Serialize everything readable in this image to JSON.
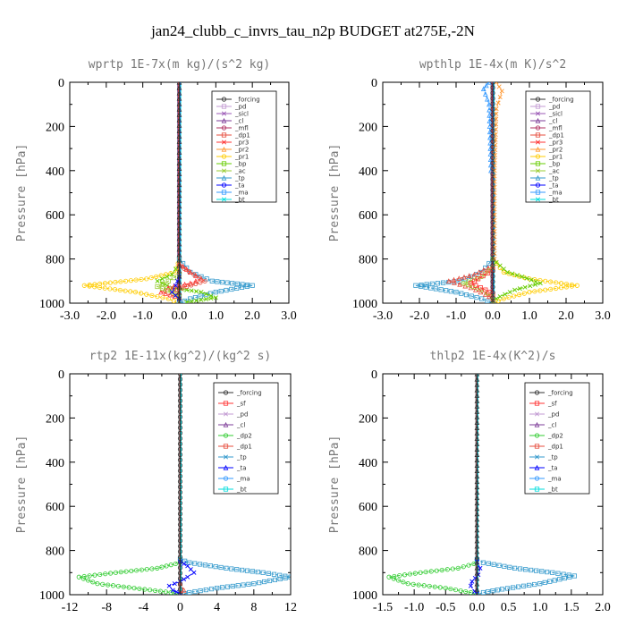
{
  "figure_title": "jan24_clubb_c_invrs_tau_n2p  BUDGET at275E,-2N",
  "colors": {
    "_forcing": "#333333",
    "_pd": "#c39bd3",
    "_sicl": "#9b59b6",
    "_cl": "#7d3c98",
    "_mfl": "#b03060",
    "_dp1": "#e74c3c",
    "_pr3": "#ff3333",
    "_pr2": "#ff9933",
    "_pr1": "#ffcc00",
    "_bp": "#66cc00",
    "_ac": "#99cc33",
    "_tp": "#3399cc",
    "_ta": "#0000ff",
    "_ma": "#3399ff",
    "_bt": "#00dddd",
    "_sf": "#ff3333",
    "_dp2": "#33cc33"
  },
  "chart_data": [
    {
      "type": "line",
      "title": "wprtp  1E-7x(m kg)/(s^2 kg)",
      "ylabel": "Pressure [hPa]",
      "xlim": [
        -3.0,
        3.0
      ],
      "ylim": [
        1000,
        0
      ],
      "xticks": [
        "-3.0",
        "-2.0",
        "-1.0",
        "0.0",
        "1.0",
        "2.0",
        "3.0"
      ],
      "yticks": [
        "0",
        "200",
        "400",
        "600",
        "800",
        "1000"
      ],
      "legend": [
        "_forcing",
        "_pd",
        "_sicl",
        "_cl",
        "_mfl",
        "_dp1",
        "_pr3",
        "_pr2",
        "_pr1",
        "_bp",
        "_ac",
        "_tp",
        "_ta",
        "_ma",
        "_bt"
      ],
      "series": [
        {
          "name": "_pr1",
          "points": [
            [
              0,
              800
            ],
            [
              -0.1,
              860
            ],
            [
              -0.9,
              890
            ],
            [
              -2.6,
              920
            ],
            [
              -1.2,
              950
            ],
            [
              -0.3,
              980
            ],
            [
              0,
              1000
            ]
          ]
        },
        {
          "name": "_tp",
          "points": [
            [
              0,
              800
            ],
            [
              0.3,
              860
            ],
            [
              0.9,
              900
            ],
            [
              2.0,
              920
            ],
            [
              1.0,
              950
            ],
            [
              0.3,
              980
            ],
            [
              0,
              1000
            ]
          ]
        },
        {
          "name": "_bp",
          "points": [
            [
              0,
              820
            ],
            [
              -0.2,
              870
            ],
            [
              -0.6,
              900
            ],
            [
              -0.2,
              930
            ],
            [
              0.6,
              950
            ],
            [
              1.0,
              975
            ],
            [
              0.2,
              995
            ]
          ]
        },
        {
          "name": "_pr3",
          "points": [
            [
              0,
              820
            ],
            [
              0.3,
              860
            ],
            [
              0.6,
              890
            ],
            [
              0.3,
              910
            ],
            [
              -0.3,
              930
            ],
            [
              -0.5,
              950
            ],
            [
              0,
              975
            ]
          ]
        },
        {
          "name": "_dp1",
          "points": [
            [
              0,
              830
            ],
            [
              0.4,
              870
            ],
            [
              0.7,
              900
            ],
            [
              0.2,
              925
            ],
            [
              -0.2,
              945
            ],
            [
              0,
              965
            ]
          ]
        },
        {
          "name": "_ac",
          "points": [
            [
              0,
              870
            ],
            [
              -0.3,
              900
            ],
            [
              -0.6,
              925
            ],
            [
              -0.2,
              950
            ],
            [
              0,
              970
            ]
          ]
        },
        {
          "name": "_ta",
          "points": [
            [
              0,
              880
            ],
            [
              -0.1,
              920
            ],
            [
              -0.2,
              950
            ],
            [
              0,
              980
            ]
          ]
        },
        {
          "name": "_forcing",
          "points": [
            [
              0,
              0
            ],
            [
              0,
              1000
            ]
          ]
        }
      ]
    },
    {
      "type": "line",
      "title": "wpthlp  1E-4x(m K)/s^2",
      "ylabel": "Pressure [hPa]",
      "xlim": [
        -3.0,
        3.0
      ],
      "ylim": [
        1000,
        0
      ],
      "xticks": [
        "-3.0",
        "-2.0",
        "-1.0",
        "0.0",
        "1.0",
        "2.0",
        "3.0"
      ],
      "yticks": [
        "0",
        "200",
        "400",
        "600",
        "800",
        "1000"
      ],
      "legend": [
        "_forcing",
        "_pd",
        "_sicl",
        "_cl",
        "_mfl",
        "_dp1",
        "_pr3",
        "_pr2",
        "_pr1",
        "_bp",
        "_ac",
        "_tp",
        "_ta",
        "_ma",
        "_bt"
      ],
      "series": [
        {
          "name": "_pr1",
          "points": [
            [
              0,
              800
            ],
            [
              0.3,
              860
            ],
            [
              1.0,
              890
            ],
            [
              2.3,
              920
            ],
            [
              1.0,
              950
            ],
            [
              0.3,
              980
            ],
            [
              0,
              1000
            ]
          ]
        },
        {
          "name": "_tp",
          "points": [
            [
              0,
              800
            ],
            [
              -0.3,
              860
            ],
            [
              -0.9,
              900
            ],
            [
              -2.1,
              920
            ],
            [
              -1.0,
              950
            ],
            [
              -0.3,
              980
            ],
            [
              0,
              1000
            ]
          ]
        },
        {
          "name": "_bp",
          "points": [
            [
              0,
              800
            ],
            [
              0.4,
              860
            ],
            [
              0.8,
              880
            ],
            [
              1.3,
              910
            ],
            [
              0.6,
              940
            ],
            [
              0.2,
              970
            ],
            [
              0,
              990
            ]
          ]
        },
        {
          "name": "_dp1",
          "points": [
            [
              0,
              830
            ],
            [
              -0.5,
              870
            ],
            [
              -1.2,
              900
            ],
            [
              -0.6,
              930
            ],
            [
              -0.2,
              960
            ],
            [
              0,
              980
            ]
          ]
        },
        {
          "name": "_ac",
          "points": [
            [
              0,
              840
            ],
            [
              -0.3,
              880
            ],
            [
              -0.8,
              910
            ],
            [
              -0.3,
              940
            ],
            [
              0,
              970
            ]
          ]
        },
        {
          "name": "_pr3",
          "points": [
            [
              0,
              850
            ],
            [
              -0.4,
              890
            ],
            [
              -0.6,
              910
            ],
            [
              -0.2,
              940
            ],
            [
              0,
              960
            ]
          ]
        },
        {
          "name": "_pr2",
          "points": [
            [
              0.1,
              0
            ],
            [
              0.25,
              40
            ],
            [
              0.1,
              120
            ],
            [
              0.05,
              400
            ],
            [
              0.05,
              800
            ]
          ]
        },
        {
          "name": "_ma",
          "points": [
            [
              -0.1,
              0
            ],
            [
              -0.25,
              30
            ],
            [
              -0.1,
              100
            ],
            [
              -0.05,
              400
            ]
          ]
        },
        {
          "name": "_forcing",
          "points": [
            [
              0,
              0
            ],
            [
              0,
              1000
            ]
          ]
        }
      ]
    },
    {
      "type": "line",
      "title": "rtp2  1E-11x(kg^2)/(kg^2 s)",
      "ylabel": "Pressure [hPa]",
      "xlim": [
        -12,
        12
      ],
      "ylim": [
        1000,
        0
      ],
      "xticks": [
        "-12",
        "-8",
        "-4",
        "0",
        "4",
        "8",
        "12"
      ],
      "yticks": [
        "0",
        "200",
        "400",
        "600",
        "800",
        "1000"
      ],
      "legend": [
        "_forcing",
        "_sf",
        "_pd",
        "_cl",
        "_dp2",
        "_dp1",
        "_tp",
        "_ta",
        "_ma",
        "_bt"
      ],
      "series": [
        {
          "name": "_dp2",
          "points": [
            [
              0,
              840
            ],
            [
              -0.5,
              860
            ],
            [
              -2.5,
              880
            ],
            [
              -7.0,
              900
            ],
            [
              -11.0,
              920
            ],
            [
              -9.0,
              950
            ],
            [
              -5.0,
              970
            ],
            [
              -1.0,
              990
            ],
            [
              0,
              1000
            ]
          ]
        },
        {
          "name": "_tp",
          "points": [
            [
              0,
              840
            ],
            [
              1.0,
              855
            ],
            [
              5.0,
              880
            ],
            [
              9.0,
              900
            ],
            [
              12.0,
              920
            ],
            [
              8.0,
              950
            ],
            [
              4.0,
              970
            ],
            [
              1.0,
              990
            ],
            [
              0,
              1000
            ]
          ]
        },
        {
          "name": "_ta",
          "points": [
            [
              0,
              850
            ],
            [
              0.8,
              870
            ],
            [
              1.5,
              900
            ],
            [
              0.8,
              920
            ],
            [
              0,
              940
            ],
            [
              -1.2,
              960
            ],
            [
              -0.8,
              980
            ],
            [
              0,
              995
            ]
          ]
        },
        {
          "name": "_dp1",
          "points": [
            [
              0,
              950
            ],
            [
              0.4,
              980
            ],
            [
              0.1,
              995
            ]
          ]
        },
        {
          "name": "_forcing",
          "points": [
            [
              0,
              0
            ],
            [
              0,
              1000
            ]
          ]
        }
      ]
    },
    {
      "type": "line",
      "title": "thlp2  1E-4x(K^2)/s",
      "ylabel": "Pressure [hPa]",
      "xlim": [
        -1.5,
        2.0
      ],
      "ylim": [
        1000,
        0
      ],
      "xticks": [
        "-1.5",
        "-1.0",
        "-0.5",
        "0.0",
        "0.5",
        "1.0",
        "1.5",
        "2.0"
      ],
      "yticks": [
        "0",
        "200",
        "400",
        "600",
        "800",
        "1000"
      ],
      "legend": [
        "_forcing",
        "_sf",
        "_pd",
        "_cl",
        "_dp2",
        "_dp1",
        "_tp",
        "_ta",
        "_ma",
        "_bt"
      ],
      "series": [
        {
          "name": "_dp2",
          "points": [
            [
              0,
              840
            ],
            [
              -0.05,
              860
            ],
            [
              -0.3,
              880
            ],
            [
              -0.9,
              900
            ],
            [
              -1.4,
              920
            ],
            [
              -1.1,
              950
            ],
            [
              -0.5,
              970
            ],
            [
              -0.1,
              990
            ],
            [
              0,
              1000
            ]
          ]
        },
        {
          "name": "_tp",
          "points": [
            [
              0,
              840
            ],
            [
              0.1,
              855
            ],
            [
              0.6,
              880
            ],
            [
              1.2,
              900
            ],
            [
              1.55,
              915
            ],
            [
              1.0,
              950
            ],
            [
              0.4,
              975
            ],
            [
              0.1,
              990
            ],
            [
              0,
              1000
            ]
          ]
        },
        {
          "name": "_ta",
          "points": [
            [
              0,
              850
            ],
            [
              0.05,
              880
            ],
            [
              0.02,
              910
            ],
            [
              -0.08,
              940
            ],
            [
              -0.1,
              960
            ],
            [
              -0.04,
              985
            ],
            [
              0,
              995
            ]
          ]
        },
        {
          "name": "_forcing",
          "points": [
            [
              0,
              0
            ],
            [
              0,
              1000
            ]
          ]
        }
      ]
    }
  ]
}
